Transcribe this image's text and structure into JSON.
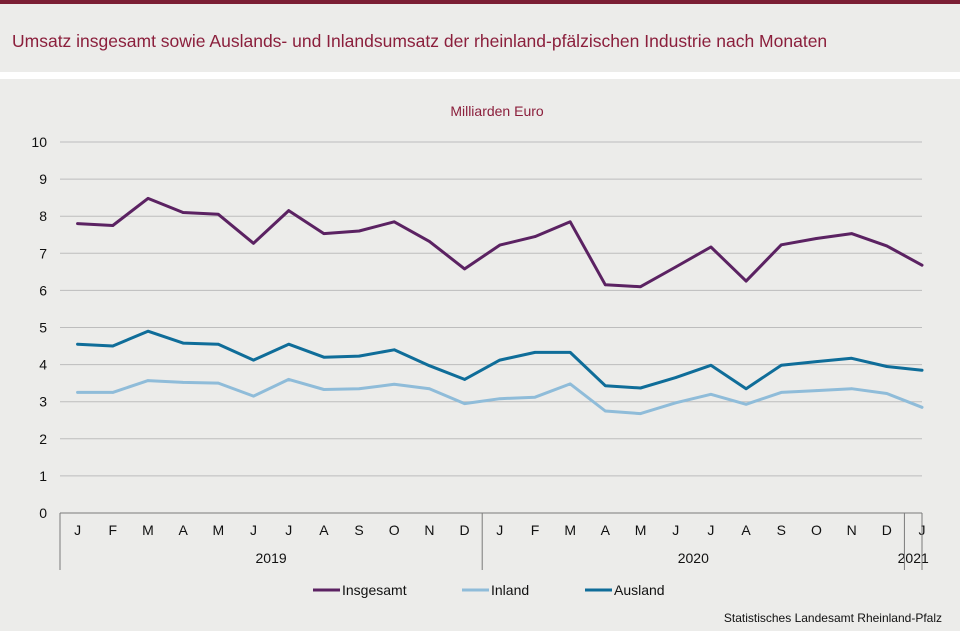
{
  "title": "Umsatz insgesamt sowie Auslands- und Inlandsumsatz der rheinland-pfälzischen Industrie nach Monaten",
  "source": "Statistisches Landesamt Rheinland-Pfalz",
  "colors": {
    "title": "#8b1f3c",
    "topbar": "#7b1e34",
    "insgesamt": "#5b2262",
    "inland": "#8fbcd9",
    "ausland": "#0f6d99"
  },
  "chart_data": {
    "type": "line",
    "unit_label": "Milliarden Euro",
    "ylim": [
      0,
      10
    ],
    "yticks": [
      "0",
      "1",
      "2",
      "3",
      "4",
      "5",
      "6",
      "7",
      "8",
      "9",
      "10"
    ],
    "grid": true,
    "legend_position": "bottom",
    "categories": [
      "J",
      "F",
      "M",
      "A",
      "M",
      "J",
      "J",
      "A",
      "S",
      "O",
      "N",
      "D",
      "J",
      "F",
      "M",
      "A",
      "M",
      "J",
      "J",
      "A",
      "S",
      "O",
      "N",
      "D",
      "J"
    ],
    "years": [
      {
        "label": "2019",
        "months": 12
      },
      {
        "label": "2020",
        "months": 12
      },
      {
        "label": "2021",
        "months": 1
      }
    ],
    "series": [
      {
        "name": "Insgesamt",
        "color": "#5b2262",
        "values": [
          7.8,
          7.75,
          8.48,
          8.1,
          8.05,
          7.27,
          8.15,
          7.53,
          7.6,
          7.85,
          7.32,
          6.58,
          7.22,
          7.45,
          7.85,
          6.15,
          6.1,
          6.63,
          7.17,
          6.25,
          7.23,
          7.4,
          7.53,
          7.2,
          6.68
        ]
      },
      {
        "name": "Inland",
        "color": "#8fbcd9",
        "values": [
          3.25,
          3.25,
          3.57,
          3.52,
          3.5,
          3.15,
          3.6,
          3.33,
          3.35,
          3.47,
          3.35,
          2.95,
          3.08,
          3.12,
          3.48,
          2.75,
          2.68,
          2.97,
          3.2,
          2.93,
          3.25,
          3.3,
          3.35,
          3.22,
          2.85
        ]
      },
      {
        "name": "Ausland",
        "color": "#0f6d99",
        "values": [
          4.55,
          4.5,
          4.9,
          4.58,
          4.55,
          4.12,
          4.55,
          4.2,
          4.23,
          4.4,
          3.97,
          3.6,
          4.12,
          4.33,
          4.33,
          3.43,
          3.37,
          3.65,
          3.98,
          3.35,
          3.98,
          4.08,
          4.17,
          3.95,
          3.85
        ]
      }
    ]
  }
}
